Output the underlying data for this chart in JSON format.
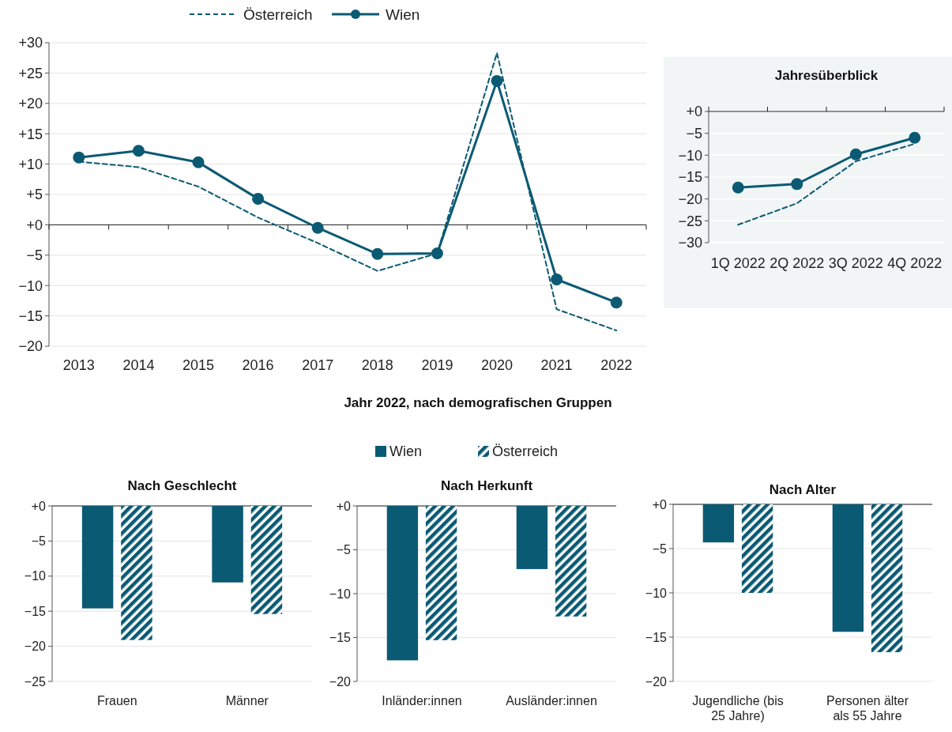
{
  "chart_data": [
    {
      "type": "line",
      "categories": [
        "2013",
        "2014",
        "2015",
        "2016",
        "2017",
        "2018",
        "2019",
        "2020",
        "2021",
        "2022"
      ],
      "series": [
        {
          "name": "Österreich",
          "color": "#0b5a73",
          "line_style": "dashed",
          "marker": "none",
          "values": [
            10.4,
            9.5,
            6.3,
            1.2,
            -3.0,
            -7.6,
            -4.7,
            28.3,
            -13.9,
            -17.4
          ]
        },
        {
          "name": "Wien",
          "color": "#0b5a73",
          "line_style": "solid",
          "marker": "circle",
          "values": [
            11.1,
            12.2,
            10.3,
            4.3,
            -0.5,
            -4.8,
            -4.7,
            23.7,
            -9.0,
            -12.8
          ]
        }
      ],
      "ylim": [
        -20,
        30
      ],
      "yticks": [
        {
          "value": -20,
          "label": "−20"
        },
        {
          "value": -15,
          "label": "−15"
        },
        {
          "value": -10,
          "label": "−10"
        },
        {
          "value": -5,
          "label": "−5"
        },
        {
          "value": 0,
          "label": "+0"
        },
        {
          "value": 5,
          "label": "+5"
        },
        {
          "value": 10,
          "label": "+10"
        },
        {
          "value": 15,
          "label": "+15"
        },
        {
          "value": 20,
          "label": "+20"
        },
        {
          "value": 25,
          "label": "+25"
        },
        {
          "value": 30,
          "label": "+30"
        }
      ],
      "grid": "y",
      "legend": "top"
    },
    {
      "type": "line",
      "title": "Jahresüberblick",
      "categories": [
        "1Q 2022",
        "2Q 2022",
        "3Q 2022",
        "4Q 2022"
      ],
      "series": [
        {
          "color": "#0b5a73",
          "line_style": "dashed",
          "marker": "none",
          "values": [
            -25.9,
            -21.0,
            -11.4,
            -7.4
          ]
        },
        {
          "color": "#0b5a73",
          "line_style": "solid",
          "marker": "circle",
          "values": [
            -17.4,
            -16.6,
            -9.8,
            -6.0
          ]
        }
      ],
      "ylim": [
        -30,
        0
      ],
      "yticks": [
        {
          "value": -30,
          "label": "−30"
        },
        {
          "value": -25,
          "label": "−25"
        },
        {
          "value": -20,
          "label": "−20"
        },
        {
          "value": -15,
          "label": "−15"
        },
        {
          "value": -10,
          "label": "−10"
        },
        {
          "value": -5,
          "label": "−5"
        },
        {
          "value": 0,
          "label": "+0"
        }
      ],
      "grid": "y"
    },
    {
      "type": "bar",
      "title": "Nach Geschlecht",
      "annotations": [
        "Jahr 2022, nach demografischen Gruppen"
      ],
      "categories": [
        "Frauen",
        "Männer"
      ],
      "series": [
        {
          "name": "Wien",
          "color": "#0b5a73",
          "values": [
            -14.6,
            -10.9
          ]
        },
        {
          "name": "Österreich",
          "color": "#0b5a73",
          "values": [
            -19.1,
            -15.4
          ]
        }
      ],
      "ylim": [
        -25,
        0
      ],
      "yticks": [
        {
          "value": -25,
          "label": "−25"
        },
        {
          "value": -20,
          "label": "−20"
        },
        {
          "value": -15,
          "label": "−15"
        },
        {
          "value": -10,
          "label": "−10"
        },
        {
          "value": -5,
          "label": "−5"
        },
        {
          "value": 0,
          "label": "+0"
        }
      ],
      "grid": "y",
      "legend": "top"
    },
    {
      "type": "bar",
      "title": "Nach Herkunft",
      "categories": [
        "Inländer:innen",
        "Ausländer:innen"
      ],
      "series": [
        {
          "color": "#0b5a73",
          "values": [
            -17.6,
            -7.2
          ]
        },
        {
          "color": "#0b5a73",
          "values": [
            -15.3,
            -12.6
          ]
        }
      ],
      "ylim": [
        -20,
        0
      ],
      "yticks": [
        {
          "value": -20,
          "label": "−20"
        },
        {
          "value": -15,
          "label": "−15"
        },
        {
          "value": -10,
          "label": "−10"
        },
        {
          "value": -5,
          "label": "−5"
        },
        {
          "value": 0,
          "label": "+0"
        }
      ],
      "grid": "y"
    },
    {
      "type": "bar",
      "title": "Nach Alter",
      "categories": [
        "Jugendliche (bis 25 Jahre)",
        "Personen älter als 55 Jahre"
      ],
      "series": [
        {
          "color": "#0b5a73",
          "values": [
            -4.3,
            -14.4
          ]
        },
        {
          "color": "#0b5a73",
          "values": [
            -10.0,
            -16.7
          ]
        }
      ],
      "ylim": [
        -20,
        0
      ],
      "yticks": [
        {
          "value": -20,
          "label": "−20"
        },
        {
          "value": -15,
          "label": "−15"
        },
        {
          "value": -10,
          "label": "−10"
        },
        {
          "value": -5,
          "label": "−5"
        },
        {
          "value": 0,
          "label": "+0"
        }
      ],
      "grid": "y"
    }
  ]
}
